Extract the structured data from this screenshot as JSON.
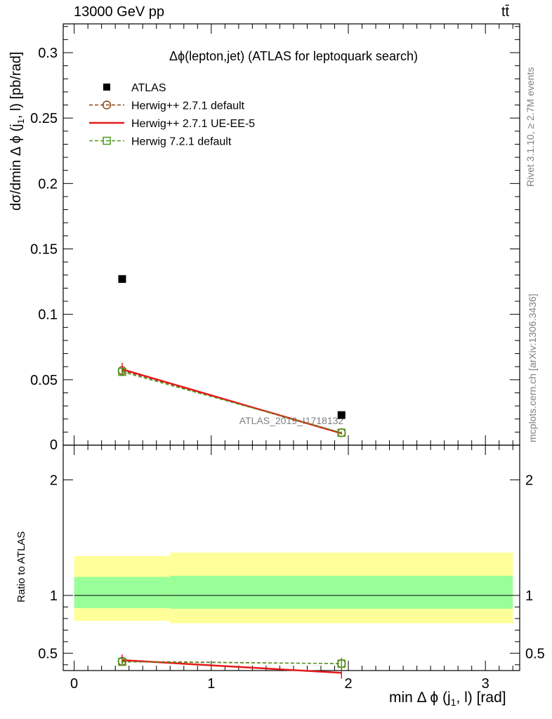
{
  "header": {
    "left": "13000 GeV pp",
    "right": "tt̄"
  },
  "side_text": {
    "rivet": "Rivet 3.1.10, ≥ 2.7M events",
    "mcplots": "mcplots.cern.ch [arXiv:1306.3436]"
  },
  "watermark": "ATLAS_2019_I1718132",
  "chart_data": [
    {
      "type": "scatter",
      "title": "Δϕ(lepton,jet) (ATLAS for leptoquark search)",
      "xlabel": "min Δ ϕ (j1, l) [rad]",
      "ylabel": "dσ/dmin Δ ϕ (j1, l) [pb/rad]",
      "xlim": [
        -0.08,
        3.25
      ],
      "ylim": [
        0,
        0.322
      ],
      "x_ticks": [
        0,
        1,
        2,
        3
      ],
      "y_ticks": [
        0.05,
        0.1,
        0.15,
        0.2,
        0.25,
        0.3
      ],
      "y_tick_labels": [
        "0.05",
        "0.1",
        "0.15",
        "0.2",
        "0.25",
        "0.3"
      ],
      "y_zero_label": "0",
      "legend_position": "top-left",
      "series": [
        {
          "name": "ATLAS",
          "style": "data",
          "color": "#000000",
          "x": [
            0.35,
            1.95
          ],
          "y": [
            0.127,
            0.023
          ],
          "xerr": [
            0.35,
            1.25
          ]
        },
        {
          "name": "Herwig++ 2.7.1 default",
          "style": "circle-dashed",
          "color": "#8b4513",
          "x": [
            0.35,
            1.95
          ],
          "y": [
            0.057,
            0.0095
          ],
          "yerr": [
            0.003,
            0.001
          ]
        },
        {
          "name": "Herwig++ 2.7.1 UE-EE-5",
          "style": "line",
          "color": "#e41a1c",
          "x": [
            0.35,
            1.95
          ],
          "y": [
            0.058,
            0.009
          ],
          "yerr": [
            0.005,
            0.001
          ]
        },
        {
          "name": "Herwig 7.2.1 default",
          "style": "square-dashed",
          "color": "#4c9a1a",
          "x": [
            0.35,
            1.95
          ],
          "y": [
            0.056,
            0.0095
          ],
          "yerr": [
            0.003,
            0.001
          ]
        }
      ]
    },
    {
      "type": "line",
      "title": "",
      "xlabel": "min Δ ϕ (j1, l) [rad]",
      "ylabel": "Ratio to ATLAS",
      "xlim": [
        -0.08,
        3.25
      ],
      "ylim": [
        0.35,
        2.3
      ],
      "x_ticks": [
        0,
        1,
        2,
        3
      ],
      "x_tick_labels": [
        "0",
        "1",
        "2",
        "3"
      ],
      "y_ticks": [
        0.5,
        1,
        2
      ],
      "y_tick_labels": [
        "0.5",
        "1",
        "2"
      ],
      "bands": [
        {
          "x0": 0.0,
          "x1": 0.7,
          "inner": [
            0.89,
            1.16
          ],
          "outer": [
            0.78,
            1.34
          ]
        },
        {
          "x0": 0.7,
          "x1": 3.2,
          "inner": [
            0.885,
            1.17
          ],
          "outer": [
            0.76,
            1.37
          ]
        }
      ],
      "band_colors": {
        "inner": "#99ff99",
        "outer": "#ffff99"
      },
      "series": [
        {
          "name": "Herwig++ 2.7.1 default",
          "style": "circle-dashed",
          "color": "#8b4513",
          "x": [
            0.35,
            1.95
          ],
          "y": [
            0.43,
            0.41
          ],
          "yerr": [
            0.04,
            0.05
          ]
        },
        {
          "name": "Herwig++ 2.7.1 UE-EE-5",
          "style": "line",
          "color": "#e41a1c",
          "x": [
            0.35,
            1.95
          ],
          "y": [
            0.44,
            0.33
          ],
          "yerr": [
            0.05,
            0.05
          ]
        },
        {
          "name": "Herwig 7.2.1 default",
          "style": "square-dashed",
          "color": "#4c9a1a",
          "x": [
            0.35,
            1.95
          ],
          "y": [
            0.425,
            0.41
          ],
          "yerr": [
            0.035,
            0.05
          ]
        }
      ]
    }
  ]
}
